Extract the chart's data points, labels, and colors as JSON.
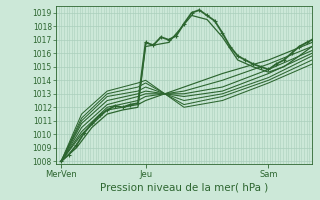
{
  "title": "Pression niveau de la mer( hPa )",
  "ylabel_ticks": [
    1008,
    1009,
    1010,
    1011,
    1012,
    1013,
    1014,
    1015,
    1016,
    1017,
    1018,
    1019
  ],
  "ylim": [
    1007.8,
    1019.5
  ],
  "xlim": [
    0,
    100
  ],
  "xtick_positions": [
    2,
    35,
    83
  ],
  "xtick_labels": [
    "MerVen",
    "Jeu",
    "Sam"
  ],
  "bg_color": "#cce8d8",
  "grid_color": "#aacfbc",
  "line_color": "#2d6630",
  "lines": [
    {
      "x": [
        2,
        5,
        8,
        11,
        14,
        17,
        20,
        23,
        26,
        29,
        32,
        35,
        38,
        41,
        44,
        47,
        50,
        53,
        56,
        59,
        62,
        65,
        68,
        71,
        74,
        77,
        80,
        83,
        86,
        89,
        92,
        95,
        98,
        100
      ],
      "y": [
        1008.0,
        1008.5,
        1009.2,
        1010.1,
        1010.8,
        1011.4,
        1011.8,
        1012.1,
        1012.0,
        1012.2,
        1012.3,
        1016.8,
        1016.6,
        1017.2,
        1017.0,
        1017.3,
        1018.2,
        1019.0,
        1019.2,
        1018.8,
        1018.4,
        1017.5,
        1016.5,
        1015.8,
        1015.5,
        1015.2,
        1015.0,
        1014.8,
        1015.2,
        1015.5,
        1016.0,
        1016.5,
        1016.8,
        1017.0
      ],
      "lw": 1.3,
      "marker": true
    },
    {
      "x": [
        2,
        8,
        14,
        20,
        26,
        32,
        35,
        44,
        53,
        59,
        65,
        71,
        77,
        83,
        89,
        95,
        100
      ],
      "y": [
        1008.0,
        1009.0,
        1010.5,
        1011.5,
        1011.8,
        1012.0,
        1016.5,
        1016.8,
        1018.8,
        1018.5,
        1017.2,
        1015.5,
        1015.0,
        1014.6,
        1015.0,
        1015.8,
        1016.5
      ],
      "lw": 0.9,
      "marker": false
    },
    {
      "x": [
        2,
        10,
        20,
        32,
        35,
        50,
        65,
        83,
        100
      ],
      "y": [
        1008.0,
        1010.0,
        1011.8,
        1012.2,
        1012.5,
        1013.5,
        1014.5,
        1015.5,
        1016.8
      ],
      "lw": 0.85,
      "marker": false
    },
    {
      "x": [
        2,
        10,
        20,
        32,
        35,
        50,
        65,
        83,
        100
      ],
      "y": [
        1008.0,
        1010.2,
        1012.0,
        1012.5,
        1012.8,
        1013.2,
        1014.0,
        1015.2,
        1016.5
      ],
      "lw": 0.8,
      "marker": false
    },
    {
      "x": [
        2,
        10,
        20,
        32,
        35,
        50,
        65,
        83,
        100
      ],
      "y": [
        1008.0,
        1010.5,
        1012.2,
        1012.8,
        1013.0,
        1013.0,
        1013.5,
        1014.8,
        1016.2
      ],
      "lw": 0.8,
      "marker": false
    },
    {
      "x": [
        2,
        10,
        20,
        32,
        35,
        50,
        65,
        83,
        100
      ],
      "y": [
        1008.0,
        1010.8,
        1012.5,
        1013.0,
        1013.2,
        1012.8,
        1013.2,
        1014.5,
        1016.0
      ],
      "lw": 0.8,
      "marker": false
    },
    {
      "x": [
        2,
        10,
        20,
        32,
        35,
        50,
        65,
        83,
        100
      ],
      "y": [
        1008.0,
        1011.0,
        1012.8,
        1013.2,
        1013.5,
        1012.5,
        1013.0,
        1014.2,
        1015.8
      ],
      "lw": 0.75,
      "marker": false
    },
    {
      "x": [
        2,
        10,
        20,
        32,
        35,
        50,
        65,
        83,
        100
      ],
      "y": [
        1008.0,
        1011.2,
        1013.0,
        1013.5,
        1013.8,
        1012.2,
        1012.8,
        1014.0,
        1015.5
      ],
      "lw": 0.75,
      "marker": false
    },
    {
      "x": [
        2,
        10,
        20,
        32,
        35,
        50,
        65,
        83,
        100
      ],
      "y": [
        1008.0,
        1011.5,
        1013.2,
        1013.8,
        1014.0,
        1012.0,
        1012.5,
        1013.8,
        1015.2
      ],
      "lw": 0.75,
      "marker": false
    }
  ],
  "minor_x_count": 100,
  "figsize": [
    3.2,
    2.0
  ],
  "dpi": 100
}
